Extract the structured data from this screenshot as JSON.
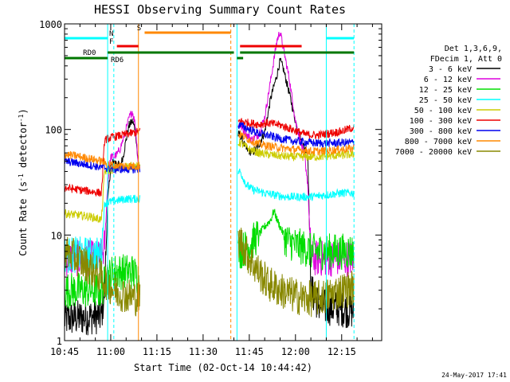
{
  "chart_data": {
    "type": "line",
    "title": "HESSI Observing Summary Count Rates",
    "xlabel": "Start Time (02-Oct-14 10:44:42)",
    "ylabel_main": "Count Rate (s",
    "ylabel_sup1": "-1",
    "ylabel_mid": " detector",
    "ylabel_sup2": "-1",
    "ylabel_end": ")",
    "ylog": true,
    "xlim_min": [
      0,
      103
    ],
    "ylim": [
      1,
      1000
    ],
    "xticks": [
      {
        "t": 0,
        "label": "10:45"
      },
      {
        "t": 15,
        "label": "11:00"
      },
      {
        "t": 30,
        "label": "11:15"
      },
      {
        "t": 45,
        "label": "11:30"
      },
      {
        "t": 60,
        "label": "11:45"
      },
      {
        "t": 75,
        "label": "12:00"
      },
      {
        "t": 90,
        "label": "12:15"
      }
    ],
    "yticks": [
      {
        "v": 1,
        "label": "1"
      },
      {
        "v": 10,
        "label": "10"
      },
      {
        "v": 100,
        "label": "100"
      },
      {
        "v": 1000,
        "label": "1000"
      }
    ],
    "legend_header": [
      "Det 1,3,6,9,",
      "FDecim 1, Att 0"
    ],
    "legend_placement": "right",
    "footer_date": "24-May-2017 17:41",
    "data_gap_min": [
      24.5,
      56.3
    ],
    "series": [
      {
        "name": "3 - 6 keV",
        "color": "#000000",
        "points": [
          [
            0,
            1.6
          ],
          [
            10,
            1.7
          ],
          [
            12,
            1.7
          ],
          [
            13,
            3
          ],
          [
            14,
            20
          ],
          [
            15,
            45
          ],
          [
            16,
            50
          ],
          [
            17,
            48
          ],
          [
            18,
            45
          ],
          [
            19,
            55
          ],
          [
            20,
            80
          ],
          [
            21,
            110
          ],
          [
            22,
            120
          ],
          [
            23,
            100
          ],
          [
            24,
            45
          ],
          [
            57,
            90
          ],
          [
            59,
            65
          ],
          [
            61,
            60
          ],
          [
            63,
            70
          ],
          [
            65,
            95
          ],
          [
            67,
            200
          ],
          [
            69,
            330
          ],
          [
            70,
            450
          ],
          [
            71,
            380
          ],
          [
            73,
            220
          ],
          [
            75,
            120
          ],
          [
            77,
            75
          ],
          [
            79,
            60
          ],
          [
            80,
            3
          ],
          [
            83,
            2.1
          ],
          [
            90,
            2
          ],
          [
            94,
            1.9
          ]
        ]
      },
      {
        "name": "6 - 12 keV",
        "color": "#dd00dd",
        "points": [
          [
            0,
            6
          ],
          [
            10,
            6
          ],
          [
            12,
            6
          ],
          [
            13,
            8
          ],
          [
            14,
            30
          ],
          [
            15,
            55
          ],
          [
            16,
            55
          ],
          [
            17,
            58
          ],
          [
            18,
            65
          ],
          [
            19,
            80
          ],
          [
            20,
            100
          ],
          [
            21,
            130
          ],
          [
            22,
            150
          ],
          [
            23,
            110
          ],
          [
            24,
            45
          ],
          [
            57,
            110
          ],
          [
            59,
            90
          ],
          [
            61,
            80
          ],
          [
            63,
            90
          ],
          [
            65,
            130
          ],
          [
            67,
            300
          ],
          [
            69,
            700
          ],
          [
            70,
            850
          ],
          [
            71,
            600
          ],
          [
            73,
            300
          ],
          [
            75,
            120
          ],
          [
            77,
            70
          ],
          [
            78,
            55
          ],
          [
            79,
            30
          ],
          [
            80,
            6
          ],
          [
            83,
            6
          ],
          [
            90,
            6
          ],
          [
            94,
            6
          ]
        ]
      },
      {
        "name": "12 - 25 keV",
        "color": "#00dd00",
        "points": [
          [
            0,
            3
          ],
          [
            10,
            3
          ],
          [
            12,
            3
          ],
          [
            13,
            3.5
          ],
          [
            14,
            4
          ],
          [
            16,
            4.5
          ],
          [
            18,
            4.5
          ],
          [
            20,
            4.5
          ],
          [
            22,
            4.5
          ],
          [
            24,
            4
          ],
          [
            57,
            7
          ],
          [
            60,
            8
          ],
          [
            63,
            10
          ],
          [
            65,
            12
          ],
          [
            67,
            14
          ],
          [
            68,
            17
          ],
          [
            69,
            14
          ],
          [
            70,
            12
          ],
          [
            72,
            9
          ],
          [
            75,
            8
          ],
          [
            78,
            7.5
          ],
          [
            80,
            7
          ],
          [
            85,
            7
          ],
          [
            90,
            7
          ],
          [
            94,
            7
          ]
        ]
      },
      {
        "name": "25 - 50 keV",
        "color": "#00ffff",
        "points": [
          [
            0,
            6.5
          ],
          [
            10,
            6.5
          ],
          [
            12,
            6.5
          ],
          [
            13,
            20
          ],
          [
            16,
            21
          ],
          [
            20,
            22
          ],
          [
            24,
            22
          ],
          [
            57,
            40
          ],
          [
            59,
            30
          ],
          [
            61,
            27
          ],
          [
            63,
            26
          ],
          [
            65,
            25
          ],
          [
            68,
            24
          ],
          [
            72,
            23
          ],
          [
            76,
            23
          ],
          [
            80,
            23
          ],
          [
            85,
            24
          ],
          [
            90,
            25
          ],
          [
            94,
            25
          ]
        ]
      },
      {
        "name": "50 - 100 keV",
        "color": "#cccc00",
        "points": [
          [
            0,
            16
          ],
          [
            4,
            15.5
          ],
          [
            8,
            15
          ],
          [
            12,
            14
          ],
          [
            13,
            40
          ],
          [
            16,
            42
          ],
          [
            20,
            45
          ],
          [
            24,
            45
          ],
          [
            57,
            75
          ],
          [
            60,
            65
          ],
          [
            63,
            60
          ],
          [
            66,
            58
          ],
          [
            70,
            56
          ],
          [
            74,
            55
          ],
          [
            78,
            55
          ],
          [
            82,
            55
          ],
          [
            86,
            56
          ],
          [
            90,
            57
          ],
          [
            94,
            58
          ]
        ]
      },
      {
        "name": "100 - 300 keV",
        "color": "#ee0000",
        "points": [
          [
            0,
            28
          ],
          [
            4,
            27
          ],
          [
            8,
            26
          ],
          [
            12,
            25
          ],
          [
            13,
            80
          ],
          [
            16,
            85
          ],
          [
            20,
            90
          ],
          [
            24,
            95
          ],
          [
            57,
            120
          ],
          [
            60,
            115
          ],
          [
            63,
            112
          ],
          [
            66,
            115
          ],
          [
            70,
            110
          ],
          [
            74,
            100
          ],
          [
            78,
            90
          ],
          [
            82,
            88
          ],
          [
            86,
            92
          ],
          [
            90,
            96
          ],
          [
            94,
            105
          ]
        ]
      },
      {
        "name": "300 - 800 keV",
        "color": "#0000ee",
        "points": [
          [
            0,
            50
          ],
          [
            4,
            48
          ],
          [
            8,
            46
          ],
          [
            12,
            44
          ],
          [
            14,
            43
          ],
          [
            16,
            42
          ],
          [
            20,
            42
          ],
          [
            24,
            42
          ],
          [
            57,
            110
          ],
          [
            60,
            100
          ],
          [
            63,
            92
          ],
          [
            66,
            88
          ],
          [
            70,
            82
          ],
          [
            74,
            78
          ],
          [
            78,
            76
          ],
          [
            82,
            74
          ],
          [
            86,
            74
          ],
          [
            90,
            75
          ],
          [
            94,
            75
          ]
        ]
      },
      {
        "name": "800 - 7000 keV",
        "color": "#ff8800",
        "points": [
          [
            0,
            58
          ],
          [
            4,
            56
          ],
          [
            8,
            53
          ],
          [
            12,
            50
          ],
          [
            14,
            47
          ],
          [
            16,
            46
          ],
          [
            20,
            45
          ],
          [
            24,
            45
          ],
          [
            57,
            90
          ],
          [
            60,
            80
          ],
          [
            63,
            73
          ],
          [
            66,
            70
          ],
          [
            70,
            67
          ],
          [
            74,
            65
          ],
          [
            78,
            63
          ],
          [
            82,
            62
          ],
          [
            86,
            63
          ],
          [
            90,
            65
          ],
          [
            94,
            66
          ]
        ]
      },
      {
        "name": "7000 - 20000 keV",
        "color": "#888800",
        "points": [
          [
            0,
            7
          ],
          [
            4,
            6
          ],
          [
            8,
            5
          ],
          [
            12,
            4
          ],
          [
            14,
            3.5
          ],
          [
            16,
            3
          ],
          [
            20,
            2.7
          ],
          [
            24,
            2.5
          ],
          [
            57,
            9
          ],
          [
            60,
            6
          ],
          [
            63,
            4.5
          ],
          [
            66,
            3.5
          ],
          [
            70,
            3
          ],
          [
            74,
            2.7
          ],
          [
            78,
            2.5
          ],
          [
            82,
            2.5
          ],
          [
            86,
            2.7
          ],
          [
            90,
            3
          ],
          [
            94,
            3.2
          ]
        ]
      }
    ],
    "flags": [
      {
        "label": "N",
        "color": "#00ffff",
        "segments": [
          [
            0,
            14
          ],
          [
            85,
            94
          ]
        ],
        "level": 0,
        "label_t": 14.5
      },
      {
        "label": "S",
        "color": "#ff8800",
        "segments": [
          [
            26,
            54
          ]
        ],
        "level": 1,
        "label_t": 23.5
      },
      {
        "label": "F",
        "color": "#ee0000",
        "segments": [
          [
            17,
            24
          ],
          [
            57,
            77
          ]
        ],
        "level": 2,
        "label_t": 14.5
      },
      {
        "label": "RD0",
        "color": "#007700",
        "segments": [
          [
            14,
            55
          ],
          [
            57,
            94
          ]
        ],
        "level": 3,
        "label_t": 6
      },
      {
        "label": "RD6",
        "color": "#007700",
        "segments": [
          [
            0,
            14
          ],
          [
            56,
            58
          ]
        ],
        "level": 4,
        "label_t": 15
      }
    ],
    "vlines": [
      {
        "t": 0,
        "color": "#00ffff",
        "dash": false
      },
      {
        "t": 14,
        "color": "#00ffff",
        "dash": false
      },
      {
        "t": 16,
        "color": "#00ffff",
        "dash": true
      },
      {
        "t": 24,
        "color": "#ff8800",
        "dash": false
      },
      {
        "t": 54,
        "color": "#ff8800",
        "dash": true
      },
      {
        "t": 56,
        "color": "#00ffff",
        "dash": false
      },
      {
        "t": 85,
        "color": "#00ffff",
        "dash": false
      },
      {
        "t": 94,
        "color": "#00ffff",
        "dash": true
      }
    ]
  }
}
